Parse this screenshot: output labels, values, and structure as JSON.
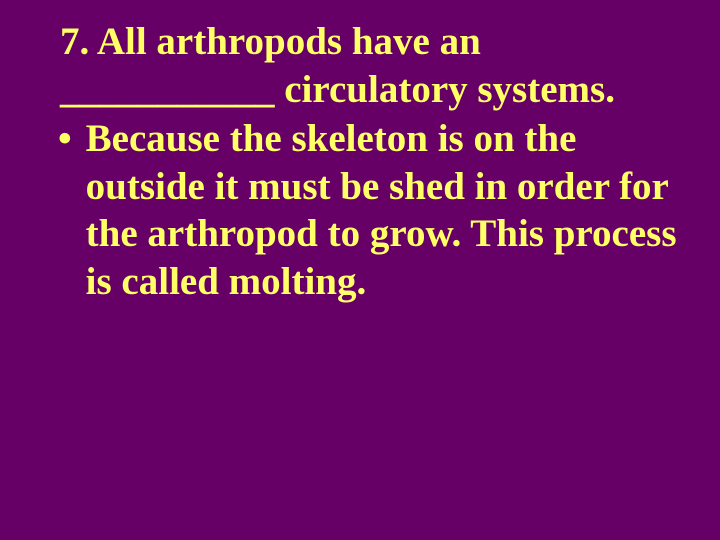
{
  "slide": {
    "background_color": "#660066",
    "text_color": "#ffff66",
    "font_family": "Times New Roman",
    "font_size_pt": 39,
    "font_weight": "bold",
    "question_number": "7.",
    "question_text": "7. All arthropods have an ___________ circulatory systems.",
    "bullet_marker": "•",
    "bullet_text": "Because the skeleton is on the outside it must be shed in order for the arthropod to grow.  This process is called molting."
  }
}
